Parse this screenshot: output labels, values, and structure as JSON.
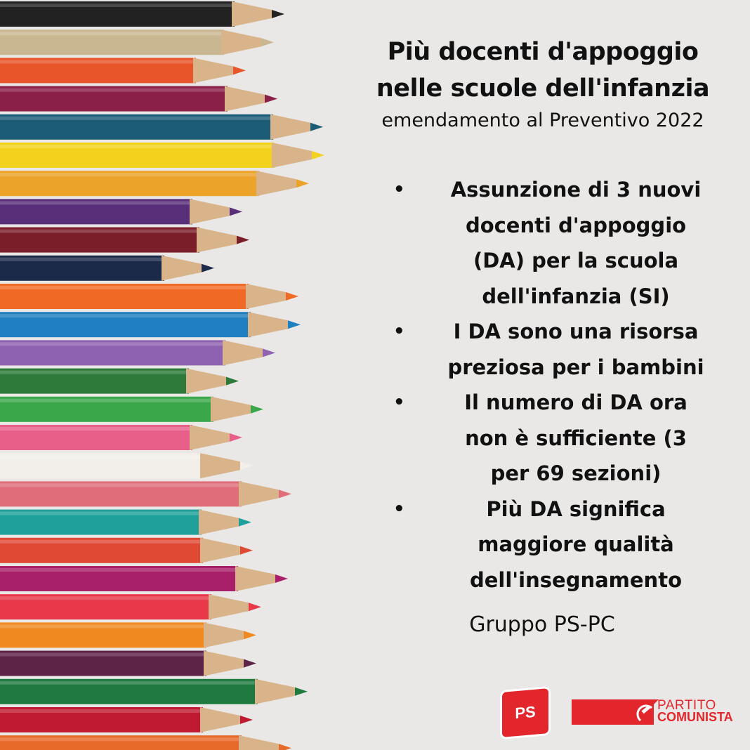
{
  "poster": {
    "title_line1": "Più docenti d'appoggio",
    "title_line2": "nelle scuole dell'infanzia",
    "subtitle": "emendamento al Preventivo 2022",
    "bullets": [
      "Assunzione di 3 nuovi docenti d'appoggio (DA) per la scuola dell'infanzia (SI)",
      "I DA sono una risorsa preziosa per i bambini",
      "Il numero di DA ora non è sufficiente (3 per 69 sezioni)",
      "Più DA significa maggiore qualità dell'insegnamento"
    ],
    "bullet_lines": [
      [
        "Assunzione di 3 nuovi",
        "docenti d'appoggio",
        "(DA) per la scuola",
        "dell'infanzia (SI)"
      ],
      [
        "I DA sono una risorsa",
        "preziosa per i bambini"
      ],
      [
        "Il numero di DA ora",
        "non è sufficiente (3",
        "per 69 sezioni)"
      ],
      [
        "Più DA significa",
        "maggiore qualità",
        "dell'insegnamento"
      ]
    ],
    "signature": "Gruppo PS-PC"
  },
  "logos": {
    "ps": "PS",
    "pc_line1": "PARTITO",
    "pc_line2": "COMUNISTA",
    "brand_color": "#e3262c"
  },
  "pencil_colors": [
    "#222222",
    "#c9b792",
    "#e8552a",
    "#8a1f48",
    "#1d5c77",
    "#f2d21c",
    "#eba32a",
    "#5a2f7a",
    "#7a1e2a",
    "#1c2a4a",
    "#f06a25",
    "#1f7fc0",
    "#8e62b0",
    "#2d7a3a",
    "#3aa84a",
    "#e8608a",
    "#f2efea",
    "#e06e7a",
    "#1fa09a",
    "#e04a35",
    "#a8206a",
    "#e8384a",
    "#f08a20",
    "#5e2448",
    "#1f7a40",
    "#c01a32",
    "#e86a2a"
  ]
}
